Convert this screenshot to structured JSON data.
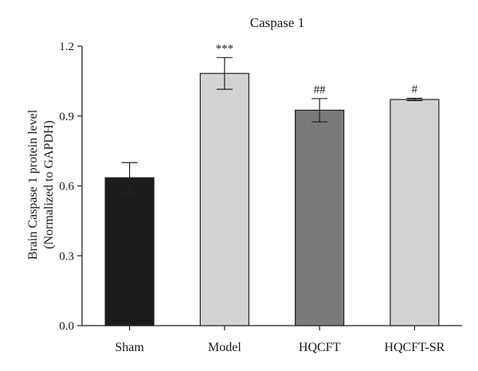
{
  "chart_data": {
    "type": "bar",
    "title": "Caspase 1",
    "ylabel_lines": [
      "Brain Caspase 1 protein level",
      "(Normalized to GAPDH)"
    ],
    "xlabel": "",
    "categories": [
      "Sham",
      "Model",
      "HQCFT",
      "HQCFT-SR"
    ],
    "values": [
      0.635,
      1.083,
      0.925,
      0.971
    ],
    "errors": [
      0.065,
      0.068,
      0.05,
      0.005
    ],
    "significance": [
      "",
      "***",
      "##",
      "#"
    ],
    "ylim": [
      0,
      1.2
    ],
    "yticks": [
      "0.0",
      "0.3",
      "0.6",
      "0.9",
      "1.2"
    ],
    "ytick_values": [
      0,
      0.3,
      0.6,
      0.9,
      1.2
    ],
    "grid": false,
    "legend": "none",
    "bar_colors": [
      "#1c1c1c",
      "#d3d3d3",
      "#7a7a7a",
      "#d3d3d3"
    ],
    "edge_color": "#222222"
  }
}
